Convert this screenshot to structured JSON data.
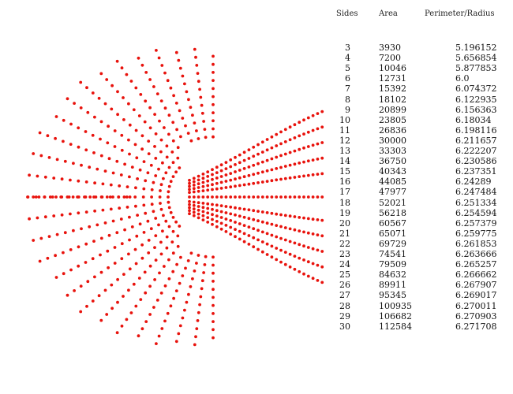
{
  "headers": {
    "sides": "Sides",
    "area": "Area",
    "ratio": "Perimeter/Radius"
  },
  "rows": [
    {
      "sides": "3",
      "area": "3930",
      "ratio": "5.196152"
    },
    {
      "sides": "4",
      "area": "7200",
      "ratio": "5.656854"
    },
    {
      "sides": "5",
      "area": "10046",
      "ratio": "5.877853"
    },
    {
      "sides": "6",
      "area": "12731",
      "ratio": "6.0"
    },
    {
      "sides": "7",
      "area": "15392",
      "ratio": "6.074372"
    },
    {
      "sides": "8",
      "area": "18102",
      "ratio": "6.122935"
    },
    {
      "sides": "9",
      "area": "20899",
      "ratio": "6.156363"
    },
    {
      "sides": "10",
      "area": "23805",
      "ratio": "6.18034"
    },
    {
      "sides": "11",
      "area": "26836",
      "ratio": "6.198116"
    },
    {
      "sides": "12",
      "area": "30000",
      "ratio": "6.211657"
    },
    {
      "sides": "13",
      "area": "33303",
      "ratio": "6.222207"
    },
    {
      "sides": "14",
      "area": "36750",
      "ratio": "6.230586"
    },
    {
      "sides": "15",
      "area": "40343",
      "ratio": "6.237351"
    },
    {
      "sides": "16",
      "area": "44085",
      "ratio": "6.24289"
    },
    {
      "sides": "17",
      "area": "47977",
      "ratio": "6.247484"
    },
    {
      "sides": "18",
      "area": "52021",
      "ratio": "6.251334"
    },
    {
      "sides": "19",
      "area": "56218",
      "ratio": "6.254594"
    },
    {
      "sides": "20",
      "area": "60567",
      "ratio": "6.257379"
    },
    {
      "sides": "21",
      "area": "65071",
      "ratio": "6.259775"
    },
    {
      "sides": "22",
      "area": "69729",
      "ratio": "6.261853"
    },
    {
      "sides": "23",
      "area": "74541",
      "ratio": "6.263666"
    },
    {
      "sides": "24",
      "area": "79509",
      "ratio": "6.265257"
    },
    {
      "sides": "25",
      "area": "84632",
      "ratio": "6.266662"
    },
    {
      "sides": "26",
      "area": "89911",
      "ratio": "6.267907"
    },
    {
      "sides": "27",
      "area": "95345",
      "ratio": "6.269017"
    },
    {
      "sides": "28",
      "area": "100935",
      "ratio": "6.270011"
    },
    {
      "sides": "29",
      "area": "106682",
      "ratio": "6.270903"
    },
    {
      "sides": "30",
      "area": "112584",
      "ratio": "6.271708"
    }
  ],
  "dot_color": "#e8120c"
}
